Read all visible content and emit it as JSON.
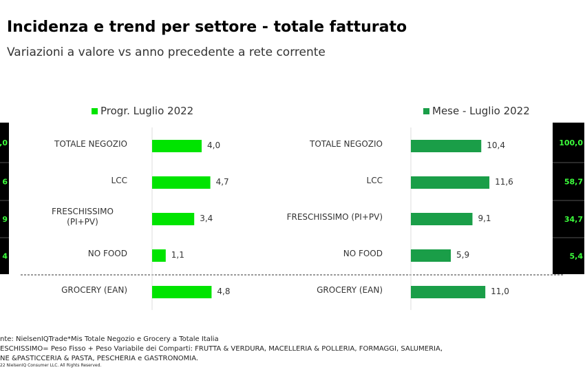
{
  "header": {
    "title": "Incidenza e trend per settore - totale fatturato",
    "subtitle": "Variazioni a valore vs anno precedente a rete corrente"
  },
  "chart_data": [
    {
      "type": "bar",
      "orientation": "horizontal",
      "categories": [
        "TOTALE NEGOZIO",
        "LCC",
        "FRESCHISSIMO (PI+PV)",
        "NO FOOD",
        "GROCERY (EAN)"
      ],
      "series": [
        {
          "name": "Progr. Luglio 2022",
          "color": "#00e400",
          "values": [
            4.0,
            4.7,
            3.4,
            1.1,
            4.8
          ],
          "value_labels": [
            "4,0",
            "4,7",
            "3,4",
            "1,1",
            "4,8"
          ]
        }
      ],
      "xlim": [
        0,
        5
      ]
    },
    {
      "type": "bar",
      "orientation": "horizontal",
      "categories": [
        "TOTALE NEGOZIO",
        "LCC",
        "FRESCHISSIMO (PI+PV)",
        "NO FOOD",
        "GROCERY (EAN)"
      ],
      "series": [
        {
          "name": "Mese - Luglio 2022",
          "color": "#1a9e48",
          "values": [
            10.4,
            11.6,
            9.1,
            5.9,
            11.0
          ],
          "value_labels": [
            "10,4",
            "11,6",
            "9,1",
            "5,9",
            "11,0"
          ]
        }
      ],
      "xlim": [
        0,
        12
      ]
    }
  ],
  "left_column": {
    "cells": [
      ",0",
      "6",
      "9",
      "4"
    ]
  },
  "right_column": {
    "cells": [
      "100,0",
      "58,7",
      "34,7",
      "5,4"
    ]
  },
  "footnotes": [
    "nte: NielsenIQTrade*Mis Totale Negozio  e  Grocery a Totale Italia",
    "ESCHISSIMO= Peso Fisso + Peso Variabile dei Comparti: FRUTTA & VERDURA, MACELLERIA & POLLERIA, FORMAGGI, SALUMERIA,",
    "NE &PASTICCERIA & PASTA, PESCHERIA e GASTRONOMIA.",
    "22 NielsenIQ Consumer LLC. All Rights Reserved."
  ]
}
